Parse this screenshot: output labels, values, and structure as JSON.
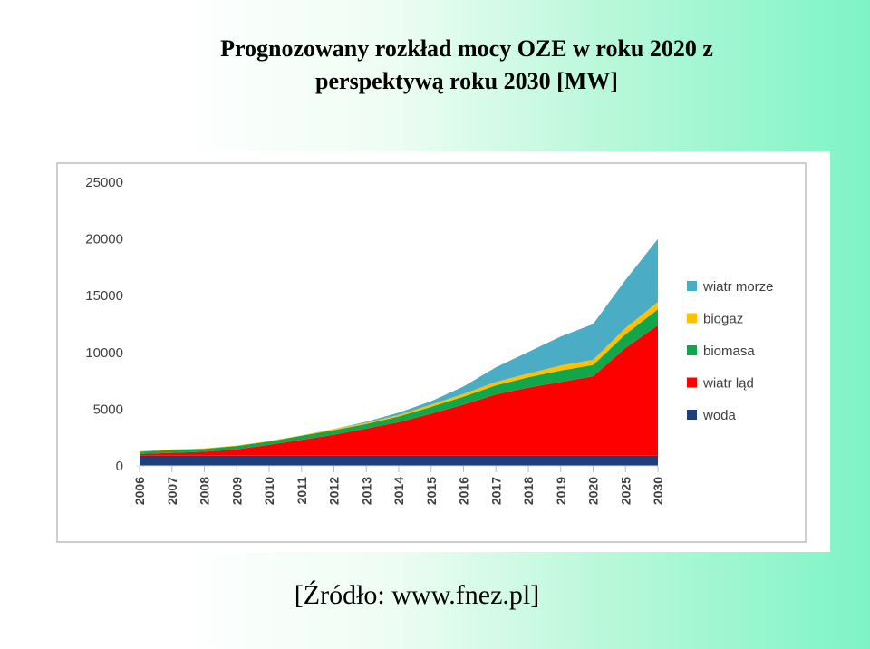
{
  "title_line1": "Prognozowany rozkład mocy OZE w roku 2020 z",
  "title_line2": "perspektywą roku 2030 [MW]",
  "source": "[Źródło: www.fnez.pl]",
  "chart_data": {
    "type": "area",
    "stacked": true,
    "categories": [
      "2006",
      "2007",
      "2008",
      "2009",
      "2010",
      "2011",
      "2012",
      "2013",
      "2014",
      "2015",
      "2016",
      "2017",
      "2018",
      "2019",
      "2020",
      "2025",
      "2030"
    ],
    "ylim": [
      0,
      25000
    ],
    "yticks": [
      0,
      5000,
      10000,
      15000,
      20000,
      25000
    ],
    "ytick_labels": [
      "0",
      "5000",
      "10000",
      "15000",
      "20000",
      "25000"
    ],
    "grid": false,
    "legend_position": "right",
    "series": [
      {
        "name": "woda",
        "color": "#1f3f7a",
        "values": [
          900,
          900,
          900,
          900,
          900,
          900,
          900,
          900,
          900,
          900,
          900,
          900,
          900,
          900,
          900,
          900,
          900
        ]
      },
      {
        "name": "wiatr ląd",
        "color": "#ff0000",
        "values": [
          150,
          250,
          350,
          550,
          950,
          1400,
          1850,
          2400,
          2950,
          3700,
          4500,
          5400,
          6000,
          6500,
          7000,
          9500,
          11500
        ]
      },
      {
        "name": "biomasa",
        "color": "#12a64a",
        "values": [
          200,
          250,
          250,
          300,
          300,
          350,
          400,
          400,
          500,
          600,
          700,
          800,
          900,
          1000,
          1000,
          1200,
          1400
        ]
      },
      {
        "name": "biogaz",
        "color": "#ffc000",
        "values": [
          50,
          50,
          50,
          50,
          50,
          50,
          100,
          100,
          150,
          200,
          250,
          300,
          350,
          450,
          450,
          550,
          650
        ]
      },
      {
        "name": "wiatr morze",
        "color": "#4bacc6",
        "values": [
          0,
          0,
          0,
          0,
          0,
          0,
          0,
          100,
          200,
          300,
          650,
          1300,
          1900,
          2550,
          3150,
          4250,
          5550
        ]
      }
    ]
  }
}
